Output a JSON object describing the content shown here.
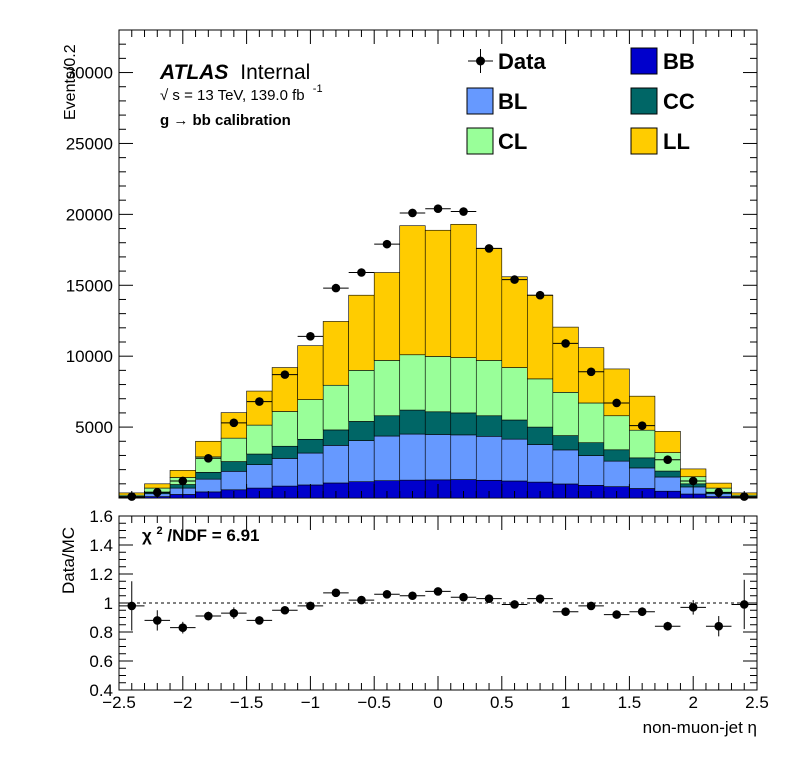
{
  "chart_data": [
    {
      "type": "bar",
      "stacked": true,
      "ylabel": "Events/0.2",
      "ylim": [
        0,
        33000
      ],
      "yticks": [
        5000,
        10000,
        15000,
        20000,
        25000,
        30000
      ],
      "yticklabels": [
        "5000",
        "10000",
        "15000",
        "20000",
        "25000",
        "30000"
      ],
      "xlim": [
        -2.5,
        2.5
      ],
      "bin_edges": [
        -2.5,
        -2.3,
        -2.1,
        -1.9,
        -1.7,
        -1.5,
        -1.3,
        -1.1,
        -0.9,
        -0.7,
        -0.5,
        -0.3,
        -0.1,
        0.1,
        0.3,
        0.5,
        0.7,
        0.9,
        1.1,
        1.3,
        1.5,
        1.7,
        1.9,
        2.1,
        2.3,
        2.5
      ],
      "x": [
        -2.4,
        -2.2,
        -2.0,
        -1.8,
        -1.6,
        -1.4,
        -1.2,
        -1.0,
        -0.8,
        -0.6,
        -0.4,
        -0.2,
        0.0,
        0.2,
        0.4,
        0.6,
        0.8,
        1.0,
        1.2,
        1.4,
        1.6,
        1.8,
        2.0,
        2.2,
        2.4
      ],
      "series": [
        {
          "name": "BB",
          "color": "#0000cc",
          "values": [
            20,
            100,
            250,
            430,
            580,
            700,
            840,
            920,
            1060,
            1150,
            1220,
            1260,
            1280,
            1300,
            1250,
            1200,
            1120,
            990,
            890,
            800,
            670,
            480,
            280,
            100,
            20
          ]
        },
        {
          "name": "BL",
          "color": "#6699ff",
          "values": [
            50,
            200,
            450,
            900,
            1300,
            1650,
            1950,
            2250,
            2650,
            2900,
            3150,
            3250,
            3200,
            3150,
            3100,
            2950,
            2650,
            2400,
            2100,
            1800,
            1450,
            1000,
            500,
            200,
            50
          ]
        },
        {
          "name": "CC",
          "color": "#006666",
          "values": [
            30,
            120,
            250,
            480,
            690,
            750,
            860,
            970,
            1090,
            1350,
            1430,
            1690,
            1600,
            1550,
            1450,
            1350,
            1230,
            1010,
            910,
            800,
            710,
            420,
            220,
            100,
            30
          ]
        },
        {
          "name": "CL",
          "color": "#99ff99",
          "values": [
            100,
            280,
            500,
            1090,
            1650,
            2040,
            2450,
            2800,
            3150,
            3600,
            3900,
            3900,
            3900,
            3900,
            3900,
            3700,
            3400,
            3050,
            2800,
            2400,
            1950,
            1300,
            500,
            300,
            100
          ]
        },
        {
          "name": "LL",
          "color": "#ffcc00",
          "values": [
            160,
            300,
            500,
            1100,
            1800,
            2400,
            3100,
            3800,
            4500,
            5300,
            6200,
            9100,
            8900,
            9400,
            7900,
            6400,
            5900,
            4600,
            3900,
            3300,
            2400,
            1500,
            550,
            350,
            160
          ]
        }
      ],
      "data": {
        "name": "Data",
        "values": [
          100,
          400,
          1200,
          2800,
          5300,
          6800,
          8700,
          11400,
          14800,
          15900,
          17900,
          20100,
          20400,
          20200,
          17600,
          15400,
          14300,
          10900,
          8900,
          6700,
          5100,
          2700,
          1200,
          400,
          100
        ],
        "yerr": [
          0,
          0,
          0,
          200,
          200,
          200,
          200,
          200,
          250,
          250,
          250,
          250,
          250,
          250,
          250,
          250,
          250,
          200,
          200,
          200,
          200,
          150,
          0,
          0,
          0
        ]
      },
      "legend": {
        "placement": "top-right",
        "entries": [
          {
            "label": "Data",
            "kind": "marker"
          },
          {
            "label": "BB",
            "kind": "box",
            "color": "#0000cc"
          },
          {
            "label": "BL",
            "kind": "box",
            "color": "#6699ff"
          },
          {
            "label": "CC",
            "kind": "box",
            "color": "#006666"
          },
          {
            "label": "CL",
            "kind": "box",
            "color": "#99ff99"
          },
          {
            "label": "LL",
            "kind": "box",
            "color": "#ffcc00"
          }
        ]
      },
      "annotations": {
        "atlas": "ATLAS",
        "internal": "Internal",
        "energy_sqrt": "√",
        "energy": "s = 13 TeV, 139.0 fb",
        "energy_sup": "-1",
        "selection": "g  → bb calibration"
      }
    },
    {
      "type": "scatter",
      "ylabel": "Data/MC",
      "xlabel": "non-muon-jet η",
      "ylim": [
        0.4,
        1.6
      ],
      "yticks": [
        0.4,
        0.6,
        0.8,
        1.0,
        1.2,
        1.4,
        1.6
      ],
      "yticklabels": [
        "0.4",
        "0.6",
        "0.8",
        "1",
        "1.2",
        "1.4",
        "1.6"
      ],
      "xlim": [
        -2.5,
        2.5
      ],
      "xticks": [
        -2.5,
        -2,
        -1.5,
        -1,
        -0.5,
        0,
        0.5,
        1,
        1.5,
        2,
        2.5
      ],
      "xticklabels": [
        "−2.5",
        "−2",
        "−1.5",
        "−1",
        "−0.5",
        "0",
        "0.5",
        "1",
        "1.5",
        "2",
        "2.5"
      ],
      "x": [
        -2.4,
        -2.2,
        -2.0,
        -1.8,
        -1.6,
        -1.4,
        -1.2,
        -1.0,
        -0.8,
        -0.6,
        -0.4,
        -0.2,
        0.0,
        0.2,
        0.4,
        0.6,
        0.8,
        1.0,
        1.2,
        1.4,
        1.6,
        1.8,
        2.0,
        2.2,
        2.4
      ],
      "y": [
        0.98,
        0.88,
        0.83,
        0.91,
        0.93,
        0.88,
        0.95,
        0.98,
        1.07,
        1.02,
        1.06,
        1.05,
        1.08,
        1.04,
        1.03,
        0.99,
        1.03,
        0.94,
        0.98,
        0.92,
        0.94,
        0.84,
        0.97,
        0.84,
        0.99
      ],
      "yerr": [
        0.17,
        0.07,
        0.04,
        0.03,
        0.04,
        0.02,
        0.02,
        0.02,
        0.02,
        0.02,
        0.02,
        0.02,
        0.02,
        0.02,
        0.02,
        0.02,
        0.02,
        0.02,
        0.02,
        0.02,
        0.03,
        0.03,
        0.05,
        0.07,
        0.17
      ],
      "reference_line": 1.0,
      "annotation": {
        "chi_base": "χ",
        "chi_sup": "2",
        "chi_rest": "/NDF = 6.91"
      }
    }
  ]
}
